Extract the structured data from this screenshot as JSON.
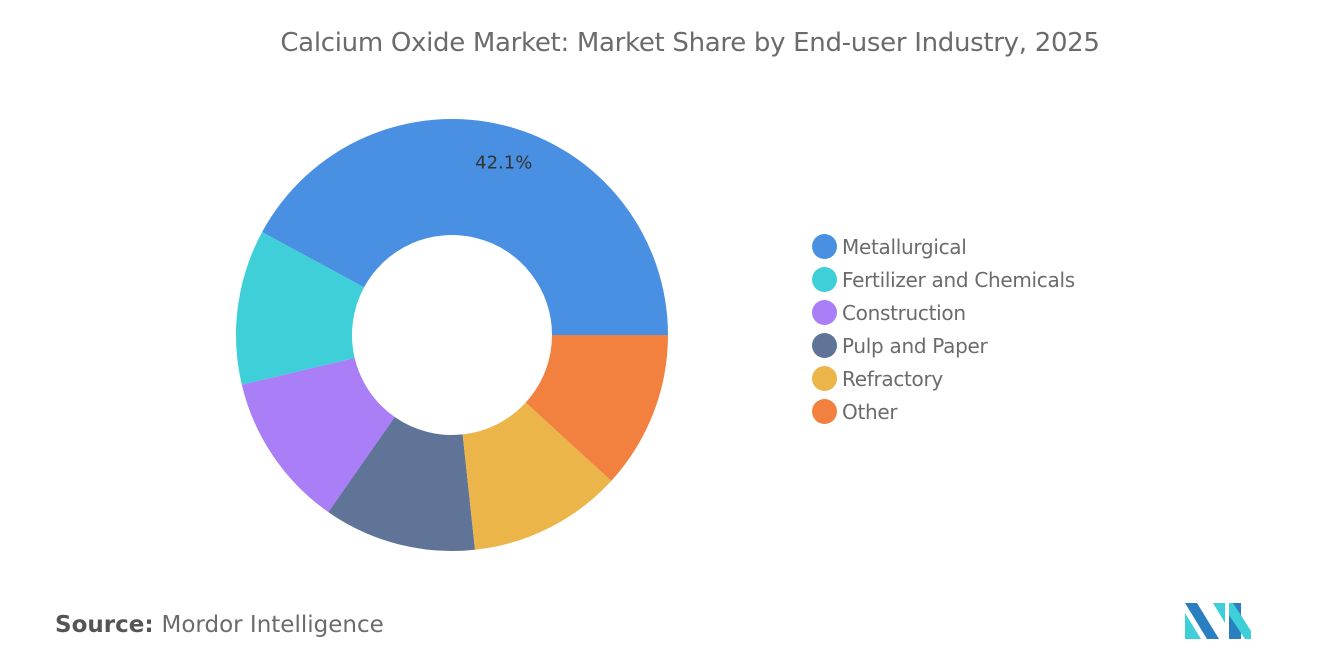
{
  "chart_data": {
    "type": "pie",
    "variant": "donut",
    "title": "Calcium Oxide Market: Market Share by End-user Industry, 2025",
    "categories": [
      "Metallurgical",
      "Fertilizer and Chemicals",
      "Construction",
      "Pulp and Paper",
      "Refractory",
      "Other"
    ],
    "values": [
      42.1,
      11.6,
      11.6,
      11.4,
      11.5,
      11.8
    ],
    "unit": "%",
    "colors": [
      "#4a90e2",
      "#3ecfd9",
      "#a97ef7",
      "#5f7497",
      "#ebb54a",
      "#f2803f"
    ],
    "data_labels": [
      {
        "category": "Metallurgical",
        "text": "42.1%"
      }
    ],
    "legend_position": "right"
  },
  "source": {
    "label": "Source:",
    "value": "Mordor Intelligence"
  },
  "logo": {
    "text": "Mordor Intelligence",
    "colors": [
      "#2a7fc1",
      "#3ecfd9"
    ]
  }
}
